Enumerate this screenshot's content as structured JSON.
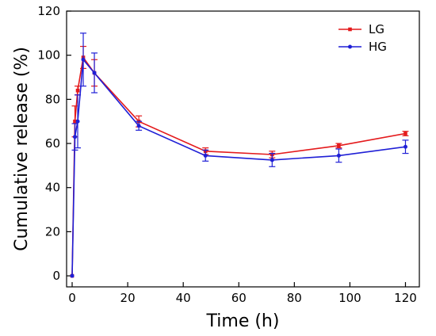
{
  "chart_data": {
    "type": "line",
    "xlabel": "Time (h)",
    "ylabel": "Cumulative release (%)",
    "xlim": [
      -2,
      125
    ],
    "ylim": [
      -5,
      120
    ],
    "xticks": [
      0,
      20,
      40,
      60,
      80,
      100,
      120
    ],
    "yticks": [
      0,
      20,
      40,
      60,
      80,
      100,
      120
    ],
    "grid": false,
    "legend_position": "top-right",
    "series": [
      {
        "name": "LG",
        "color": "#e41a1c",
        "marker": "square",
        "x": [
          0,
          1,
          2,
          4,
          8,
          24,
          48,
          72,
          96,
          120
        ],
        "y": [
          0,
          70,
          84,
          99,
          92,
          70,
          56.5,
          55,
          59,
          64.5
        ],
        "err": [
          0,
          7,
          2,
          5,
          6,
          2.5,
          1.5,
          1.5,
          1,
          1
        ]
      },
      {
        "name": "HG",
        "color": "#1f1fd6",
        "marker": "circle",
        "x": [
          0,
          1,
          2,
          4,
          8,
          24,
          48,
          72,
          96,
          120
        ],
        "y": [
          0,
          63,
          70,
          98,
          92,
          68,
          54.5,
          52.5,
          54.5,
          58.5
        ],
        "err": [
          0,
          6,
          12,
          12,
          9,
          2,
          2.5,
          3,
          3,
          3
        ]
      }
    ]
  }
}
